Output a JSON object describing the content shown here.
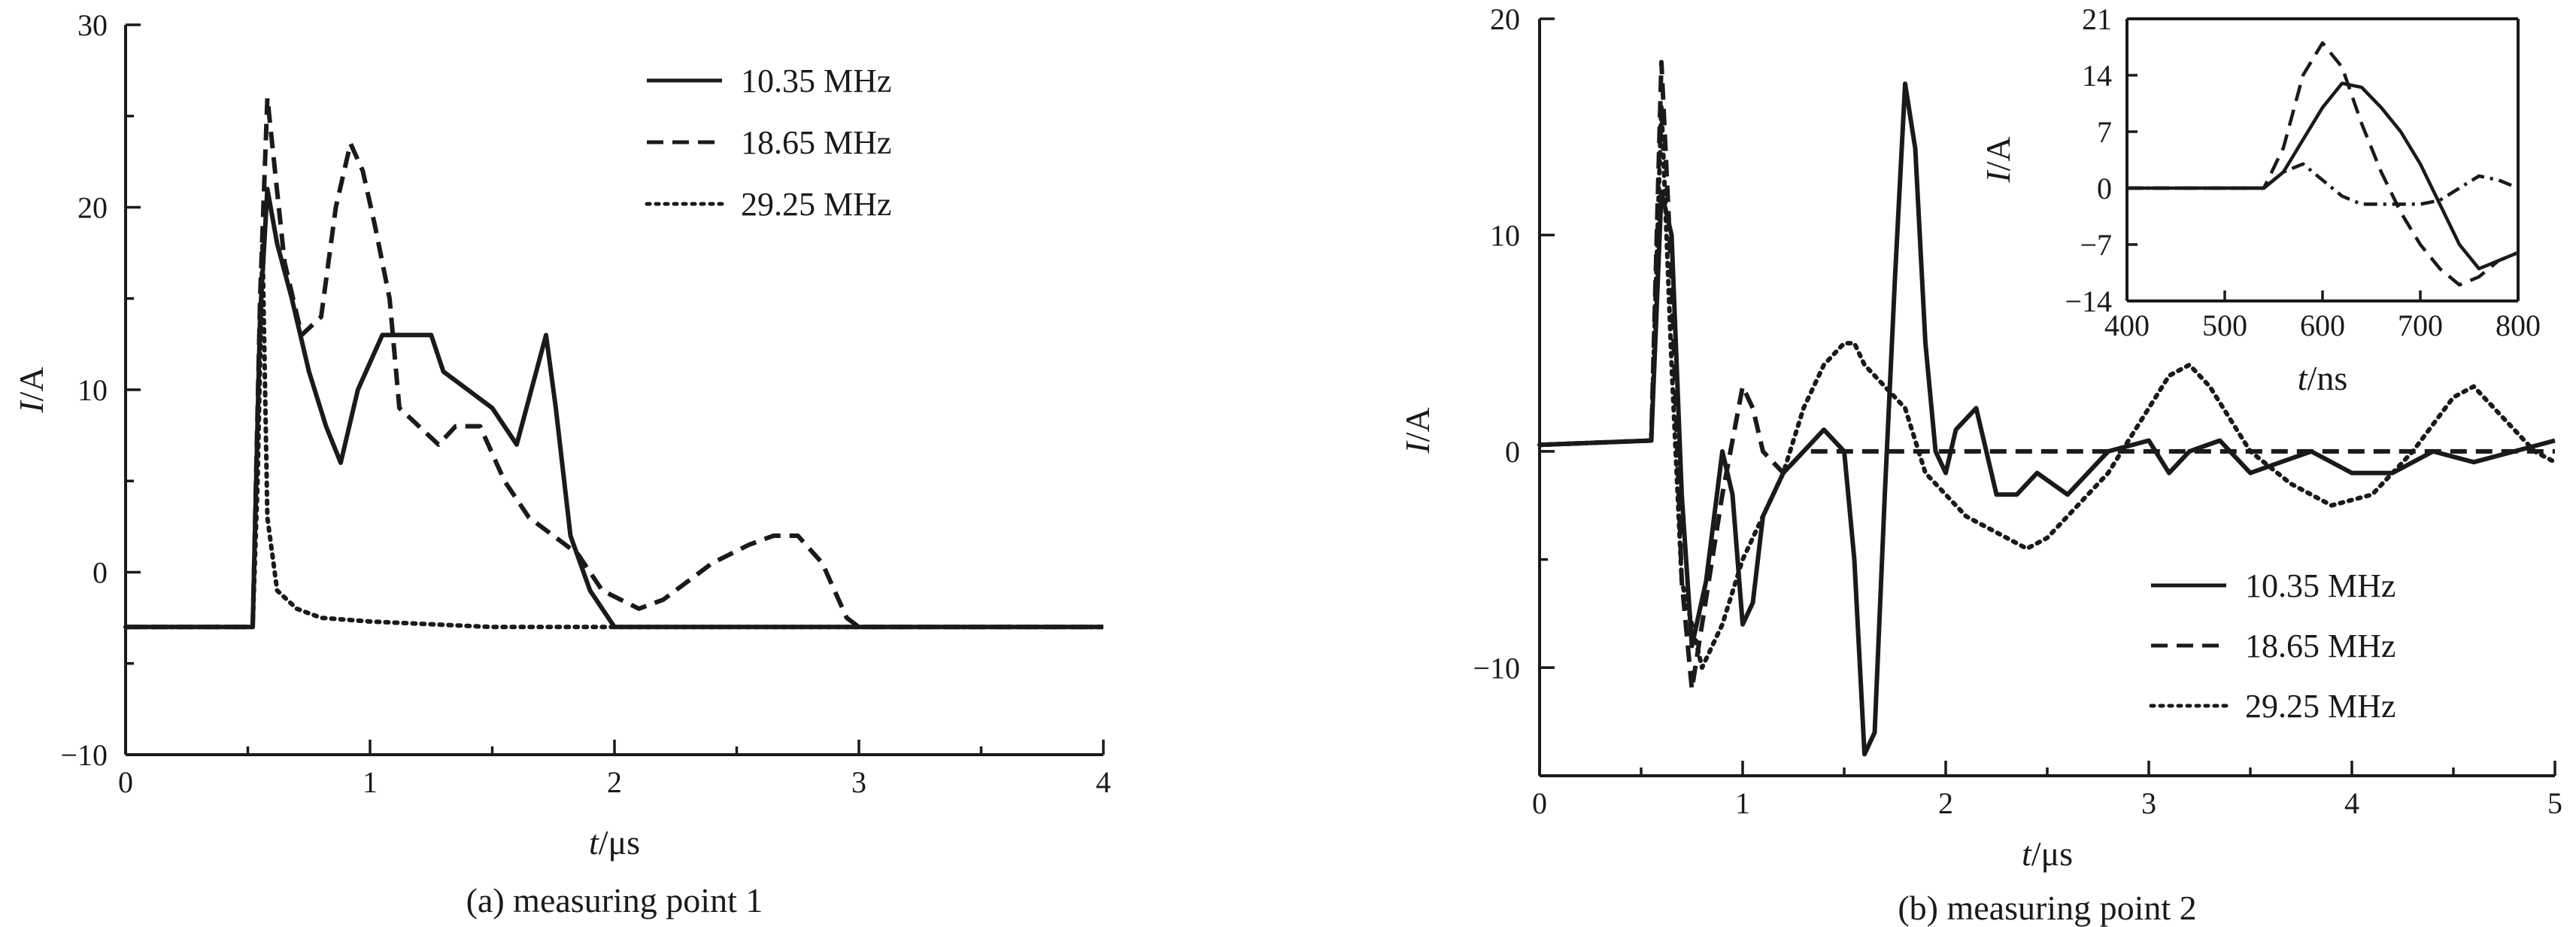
{
  "chart_data": [
    {
      "type": "line",
      "caption": "(a) measuring point 1",
      "xlabel": "t/μs",
      "ylabel": "I/A",
      "xlim": [
        0,
        4
      ],
      "ylim": [
        -10,
        30
      ],
      "xticks": [
        "0",
        "1",
        "2",
        "3",
        "4"
      ],
      "yticks": [
        "−10",
        "0",
        "10",
        "20",
        "30"
      ],
      "legend_position": "top-right",
      "series": [
        {
          "name": "10.35 MHz",
          "style": "solid",
          "x": [
            0,
            0.52,
            0.55,
            0.58,
            0.62,
            0.68,
            0.75,
            0.82,
            0.88,
            0.95,
            1.05,
            1.15,
            1.25,
            1.3,
            1.4,
            1.5,
            1.6,
            1.68,
            1.72,
            1.76,
            1.82,
            1.9,
            2.0,
            4.0
          ],
          "y": [
            -3,
            -3,
            14,
            21,
            18,
            15,
            11,
            8,
            6,
            10,
            13,
            13,
            13,
            11,
            10,
            9,
            7,
            11,
            13,
            9,
            2,
            -1,
            -3,
            -3
          ]
        },
        {
          "name": "18.65 MHz",
          "style": "dashed",
          "x": [
            0,
            0.52,
            0.55,
            0.58,
            0.65,
            0.72,
            0.8,
            0.86,
            0.92,
            0.97,
            1.02,
            1.08,
            1.12,
            1.2,
            1.28,
            1.35,
            1.45,
            1.55,
            1.65,
            1.75,
            1.85,
            1.95,
            2.1,
            2.2,
            2.4,
            2.55,
            2.65,
            2.75,
            2.85,
            2.95,
            3.0,
            4.0
          ],
          "y": [
            -3,
            -3,
            15,
            26,
            17,
            13,
            14,
            20,
            23.5,
            22,
            19,
            15,
            9,
            8,
            7,
            8,
            8,
            5,
            3,
            2,
            1,
            -1,
            -2,
            -1.5,
            0.5,
            1.5,
            2,
            2,
            0.5,
            -2.5,
            -3,
            -3
          ]
        },
        {
          "name": "29.25 MHz",
          "style": "dotted",
          "x": [
            0,
            0.52,
            0.54,
            0.56,
            0.58,
            0.62,
            0.7,
            0.8,
            1.0,
            1.5,
            2.0,
            2.5,
            3.0,
            4.0
          ],
          "y": [
            -3,
            -3,
            5,
            18,
            3,
            -1,
            -2,
            -2.5,
            -2.7,
            -3,
            -3,
            -3,
            -3,
            -3
          ]
        }
      ]
    },
    {
      "type": "line",
      "caption": "(b) measuring point 2",
      "xlabel": "t/μs",
      "ylabel": "I/A",
      "xlim": [
        0,
        5
      ],
      "ylim": [
        -15,
        20
      ],
      "xticks": [
        "0",
        "1",
        "2",
        "3",
        "4",
        "5"
      ],
      "yticks": [
        "−10",
        "0",
        "10",
        "20"
      ],
      "legend_position": "bottom-right",
      "series": [
        {
          "name": "10.35 MHz",
          "style": "solid",
          "x": [
            0,
            0.55,
            0.6,
            0.65,
            0.7,
            0.75,
            0.82,
            0.9,
            0.95,
            1.0,
            1.05,
            1.1,
            1.2,
            1.3,
            1.4,
            1.5,
            1.55,
            1.6,
            1.65,
            1.7,
            1.75,
            1.8,
            1.85,
            1.9,
            1.95,
            2.0,
            2.05,
            2.15,
            2.25,
            2.35,
            2.45,
            2.6,
            2.8,
            3.0,
            3.1,
            3.2,
            3.35,
            3.5,
            3.65,
            3.8,
            4.0,
            4.2,
            4.4,
            4.6,
            4.8,
            5.0
          ],
          "y": [
            0.3,
            0.5,
            12,
            10,
            -2,
            -9,
            -6,
            0,
            -2,
            -8,
            -7,
            -3,
            -1,
            0,
            1,
            0,
            -5,
            -14,
            -13,
            -2,
            8,
            17,
            14,
            5,
            0,
            -1,
            1,
            2,
            -2,
            -2,
            -1,
            -2,
            0,
            0.5,
            -1,
            0,
            0.5,
            -1,
            -0.5,
            0,
            -1,
            -1,
            0,
            -0.5,
            0,
            0.5
          ]
        },
        {
          "name": "18.65 MHz",
          "style": "dashed",
          "x": [
            0,
            0.55,
            0.6,
            0.65,
            0.7,
            0.75,
            0.8,
            0.9,
            1.0,
            1.05,
            1.1,
            1.2,
            1.3,
            1.5,
            2.0,
            3.0,
            4.0,
            5.0
          ],
          "y": [
            0.3,
            0.5,
            18,
            8,
            -6,
            -11,
            -8,
            -2,
            3,
            2,
            0,
            -1,
            0,
            0,
            0,
            0,
            0,
            0
          ]
        },
        {
          "name": "29.25 MHz",
          "style": "dotted",
          "x": [
            0,
            0.55,
            0.6,
            0.65,
            0.7,
            0.8,
            0.9,
            1.0,
            1.1,
            1.2,
            1.3,
            1.4,
            1.5,
            1.55,
            1.6,
            1.7,
            1.8,
            1.9,
            2.0,
            2.1,
            2.2,
            2.3,
            2.4,
            2.5,
            2.6,
            2.8,
            3.0,
            3.1,
            3.2,
            3.3,
            3.5,
            3.7,
            3.9,
            4.1,
            4.3,
            4.5,
            4.6,
            4.7,
            4.9,
            5.0
          ],
          "y": [
            0.3,
            0.5,
            16,
            4,
            -6,
            -10,
            -8,
            -5,
            -3,
            -1,
            2,
            4,
            5,
            5,
            4,
            3,
            2,
            -1,
            -2,
            -3,
            -3.5,
            -4,
            -4.5,
            -4,
            -3,
            -1,
            2,
            3.5,
            4,
            3,
            0,
            -1.5,
            -2.5,
            -2,
            0,
            2.5,
            3,
            2,
            0,
            -0.5
          ]
        }
      ],
      "inset": {
        "type": "line",
        "xlabel": "t/ns",
        "ylabel": "I/A",
        "xlim": [
          400,
          800
        ],
        "ylim": [
          -14,
          21
        ],
        "xticks": [
          "400",
          "500",
          "600",
          "700",
          "800"
        ],
        "yticks": [
          "−14",
          "−7",
          "0",
          "7",
          "14",
          "21"
        ],
        "series": [
          {
            "name": "10.35 MHz",
            "style": "solid",
            "x": [
              400,
              540,
              560,
              580,
              600,
              620,
              640,
              660,
              680,
              700,
              720,
              740,
              760,
              780,
              800
            ],
            "y": [
              0,
              0,
              2,
              6,
              10,
              13,
              12.5,
              10,
              7,
              3,
              -2,
              -7,
              -10,
              -9,
              -8
            ]
          },
          {
            "name": "18.65 MHz",
            "style": "dashed",
            "x": [
              400,
              540,
              560,
              580,
              600,
              620,
              640,
              660,
              680,
              700,
              720,
              740,
              760,
              780,
              800
            ],
            "y": [
              0,
              0,
              5,
              14,
              18,
              15,
              8,
              2,
              -3,
              -7,
              -10,
              -12,
              -11,
              -9,
              -8
            ]
          },
          {
            "name": "29.25 MHz",
            "style": "dashdot",
            "x": [
              400,
              540,
              560,
              580,
              600,
              620,
              640,
              660,
              680,
              700,
              720,
              740,
              760,
              780,
              800
            ],
            "y": [
              0,
              0,
              2,
              3,
              1,
              -1,
              -2,
              -2,
              -2,
              -2,
              -1.5,
              0,
              1.5,
              1,
              0
            ]
          }
        ]
      }
    }
  ]
}
